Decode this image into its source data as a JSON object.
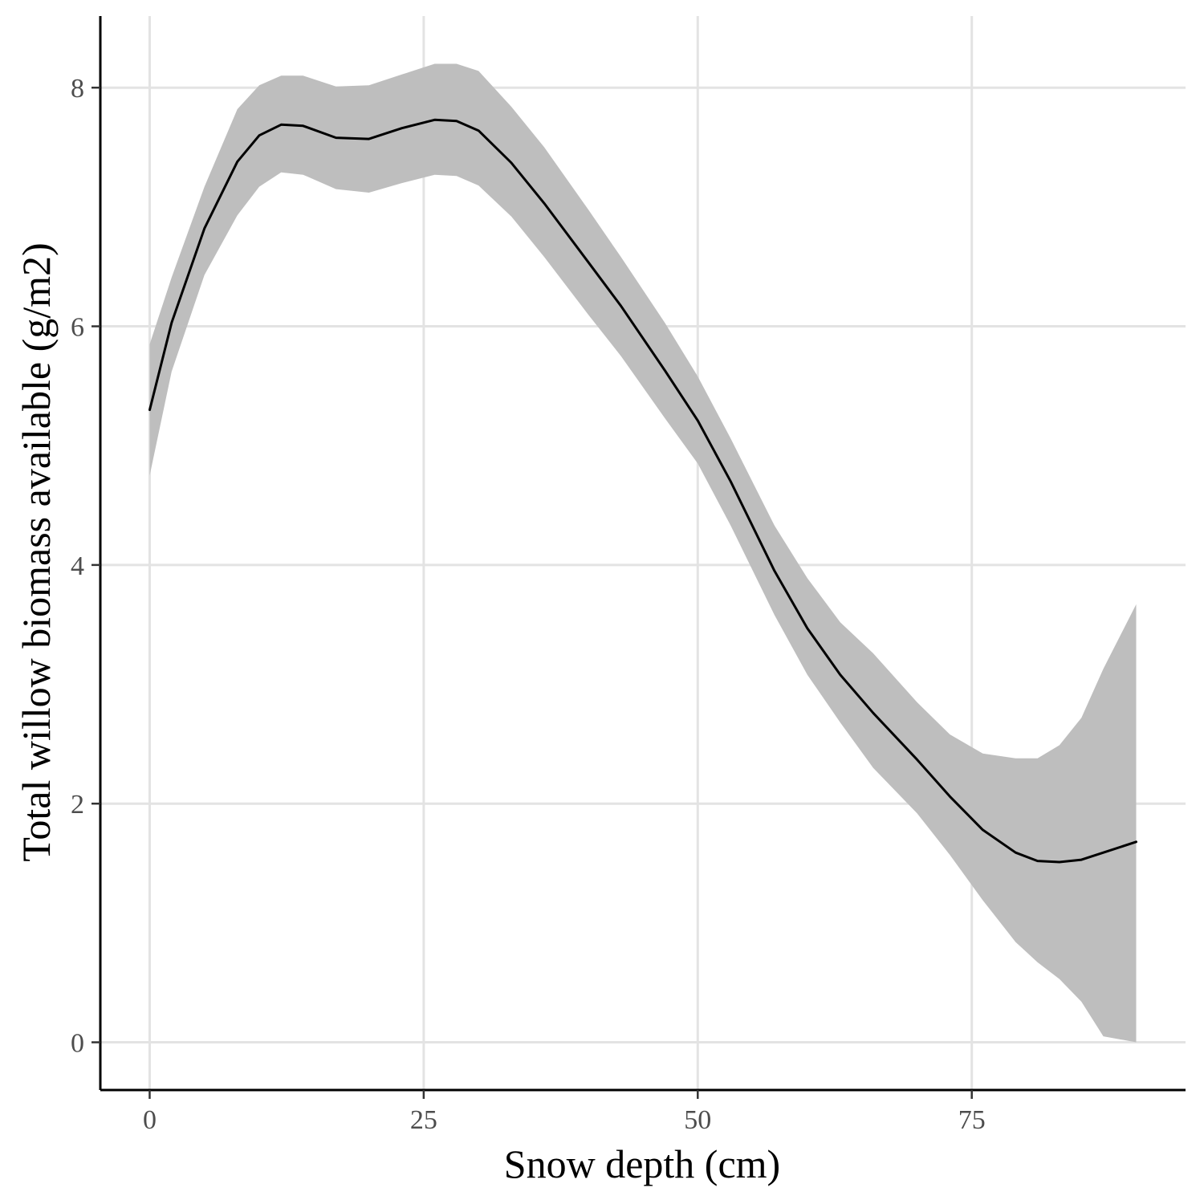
{
  "chart_data": {
    "type": "line",
    "xlabel": "Snow depth (cm)",
    "ylabel": "Total willow biomass available (g/m2)",
    "xlim": [
      -4.5,
      94.5
    ],
    "ylim": [
      -0.4,
      8.6
    ],
    "x_ticks": [
      0,
      25,
      50,
      75
    ],
    "x_tick_labels": [
      "0",
      "25",
      "50",
      "75"
    ],
    "y_ticks": [
      0,
      2,
      4,
      6,
      8
    ],
    "y_tick_labels": [
      "0",
      "2",
      "4",
      "6",
      "8"
    ],
    "grid": true,
    "legend": "none",
    "colors": {
      "line": "#000000",
      "ribbon": "#bebebe",
      "grid": "#e3e3e3"
    },
    "series": [
      {
        "x": [
          0,
          2,
          5,
          8,
          10,
          12,
          14,
          17,
          20,
          23,
          26,
          28,
          30,
          33,
          36,
          40,
          43,
          47,
          50,
          53,
          57,
          60,
          63,
          66,
          70,
          73,
          76,
          79,
          81,
          83,
          85,
          87,
          90
        ],
        "y": [
          5.3,
          6.03,
          6.82,
          7.38,
          7.6,
          7.69,
          7.68,
          7.58,
          7.57,
          7.66,
          7.73,
          7.72,
          7.64,
          7.37,
          7.03,
          6.54,
          6.17,
          5.63,
          5.21,
          4.7,
          3.95,
          3.47,
          3.08,
          2.76,
          2.37,
          2.06,
          1.78,
          1.59,
          1.52,
          1.51,
          1.53,
          1.59,
          1.68
        ],
        "lower": [
          4.75,
          5.62,
          6.43,
          6.93,
          7.17,
          7.29,
          7.27,
          7.15,
          7.12,
          7.2,
          7.27,
          7.26,
          7.18,
          6.92,
          6.58,
          6.1,
          5.75,
          5.23,
          4.85,
          4.33,
          3.58,
          3.08,
          2.68,
          2.3,
          1.92,
          1.57,
          1.19,
          0.84,
          0.67,
          0.53,
          0.34,
          0.05,
          0.0
        ],
        "upper": [
          5.85,
          6.41,
          7.17,
          7.82,
          8.02,
          8.1,
          8.1,
          8.01,
          8.02,
          8.11,
          8.2,
          8.2,
          8.14,
          7.84,
          7.5,
          6.98,
          6.58,
          6.03,
          5.58,
          5.06,
          4.33,
          3.89,
          3.52,
          3.26,
          2.85,
          2.58,
          2.42,
          2.38,
          2.38,
          2.49,
          2.72,
          3.13,
          3.67
        ]
      }
    ]
  }
}
